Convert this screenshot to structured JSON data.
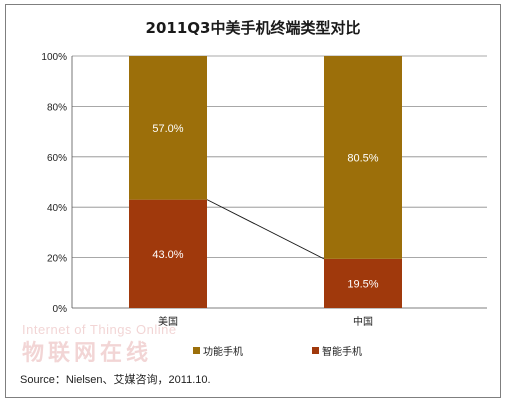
{
  "chart_data": {
    "type": "bar",
    "stacked": true,
    "title": "2011Q3中美手机终端类型对比",
    "categories": [
      "美国",
      "中国"
    ],
    "series": [
      {
        "name": "智能手机",
        "values": [
          43.0,
          19.5
        ],
        "labels": [
          "43.0%",
          "19.5%"
        ],
        "color": "#a0390c"
      },
      {
        "name": "功能手机",
        "values": [
          57.0,
          80.5
        ],
        "labels": [
          "57.0%",
          "80.5%"
        ],
        "color": "#9c6f0a"
      }
    ],
    "ylim": [
      0,
      100
    ],
    "yticks": [
      "0%",
      "20%",
      "40%",
      "60%",
      "80%",
      "100%"
    ],
    "grid": true,
    "connector_line": true,
    "legend_position": "bottom"
  },
  "watermark": {
    "en": "Internet of Things Online",
    "cn": "物联网在线"
  },
  "source": "Source：Nielsen、艾媒咨询，2011.10."
}
